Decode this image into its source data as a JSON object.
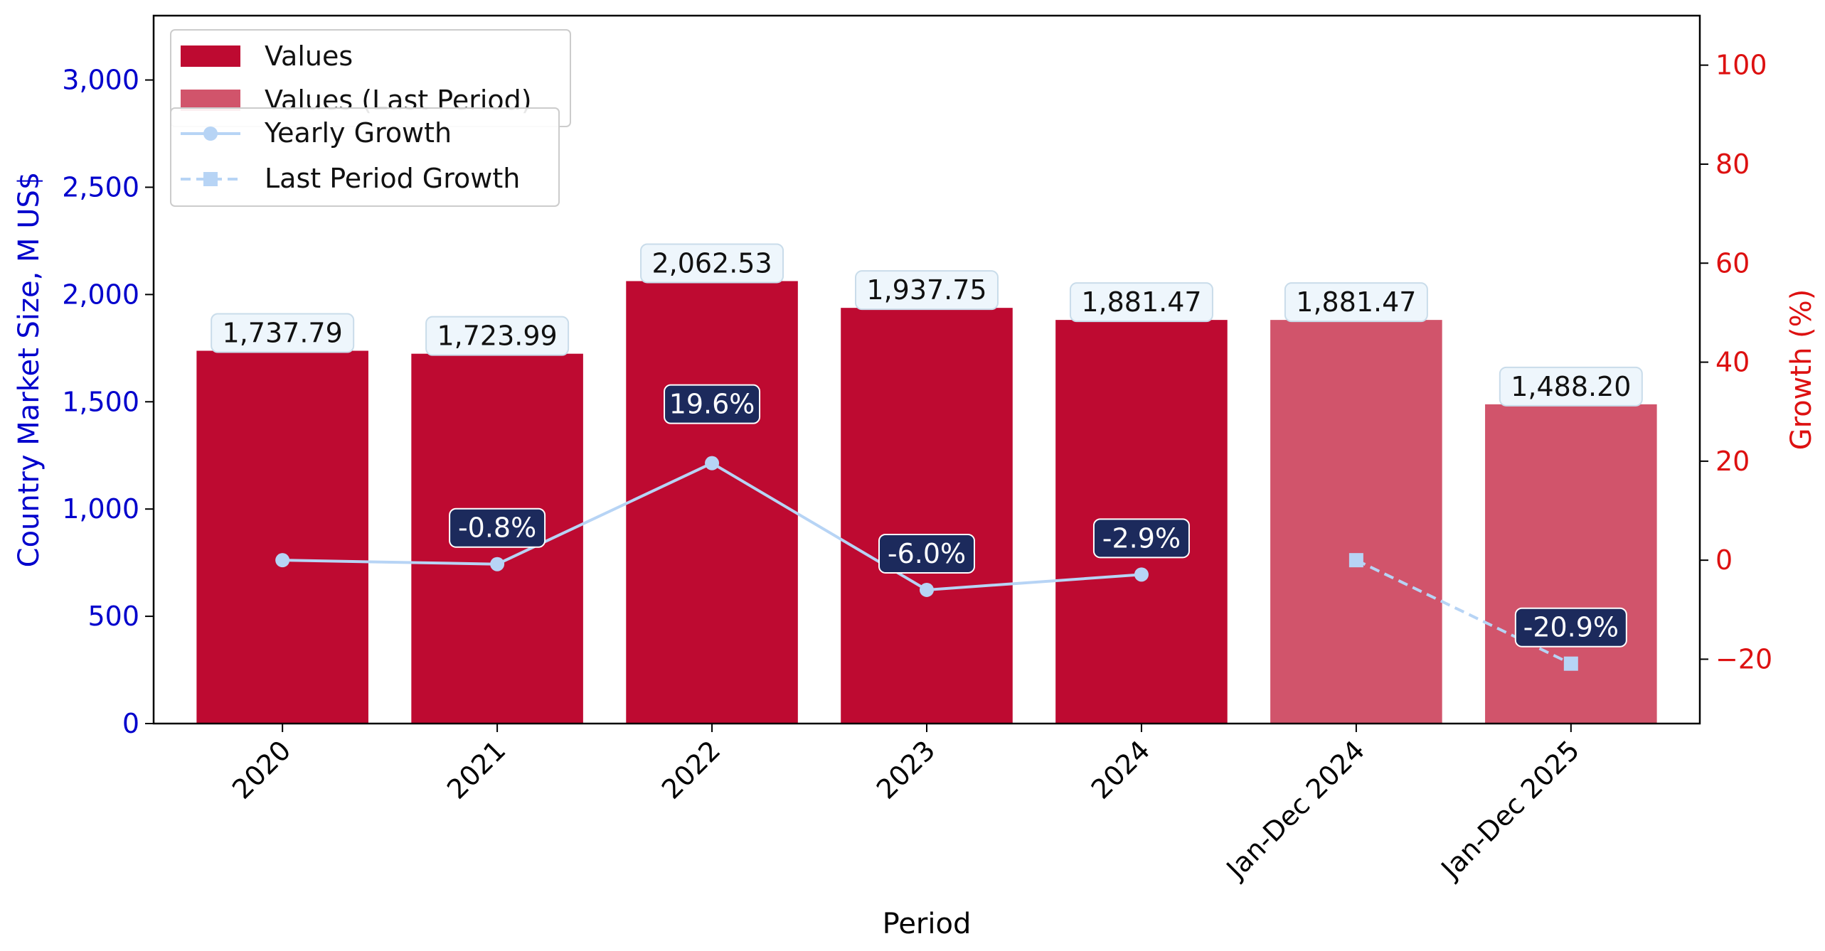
{
  "chart_data": {
    "type": "bar",
    "categories": [
      "2020",
      "2021",
      "2022",
      "2023",
      "2024",
      "Jan-Dec 2024",
      "Jan-Dec 2025"
    ],
    "values": [
      1737.79,
      1723.99,
      2062.53,
      1937.75,
      1881.47,
      1881.47,
      1488.2
    ],
    "value_labels": [
      "1,737.79",
      "1,723.99",
      "2,062.53",
      "1,937.75",
      "1,881.47",
      "1,881.47",
      "1,488.20"
    ],
    "bar_kinds": [
      "yearly",
      "yearly",
      "yearly",
      "yearly",
      "yearly",
      "last_period",
      "last_period"
    ],
    "series": [
      {
        "name": "Values",
        "type": "bar",
        "color": "#be0a31"
      },
      {
        "name": "Values (Last Period)",
        "type": "bar",
        "color": "#d1546b"
      }
    ],
    "growth_series": [
      {
        "name": "Yearly Growth",
        "style": "solid",
        "marker": "circle",
        "color": "#b7d4f5",
        "x_index": [
          0,
          1,
          2,
          3,
          4
        ],
        "values": [
          0.0,
          -0.8,
          19.6,
          -6.0,
          -2.9
        ],
        "labels": [
          "",
          "-0.8%",
          "19.6%",
          "-6.0%",
          "-2.9%"
        ]
      },
      {
        "name": "Last Period Growth",
        "style": "dashed",
        "marker": "square",
        "color": "#b7d4f5",
        "x_index": [
          5,
          6
        ],
        "values": [
          0.0,
          -20.9
        ],
        "labels": [
          "",
          "-20.9%"
        ]
      }
    ],
    "xlabel": "Period",
    "ylabel_left": "Country Market Size, M US$",
    "ylabel_right": "Growth (%)",
    "ylim_left": [
      0,
      3300
    ],
    "ylim_right": [
      -33,
      110
    ],
    "yticks_left": [
      0,
      500,
      1000,
      1500,
      2000,
      2500,
      3000
    ],
    "yticks_left_labels": [
      "0",
      "500",
      "1,000",
      "1,500",
      "2,000",
      "2,500",
      "3,000"
    ],
    "yticks_right": [
      -20,
      0,
      20,
      40,
      60,
      80,
      100
    ],
    "yticks_right_labels": [
      "−20",
      "0",
      "20",
      "40",
      "60",
      "80",
      "100"
    ],
    "legend_position": "top-left",
    "grid": false,
    "colors": {
      "left_axis": "#0000cc",
      "right_axis": "#dd1111",
      "label_box_fill": "#eef6fc",
      "label_box_stroke": "#c9dcea",
      "growth_box_fill": "#1c2a5c"
    }
  }
}
